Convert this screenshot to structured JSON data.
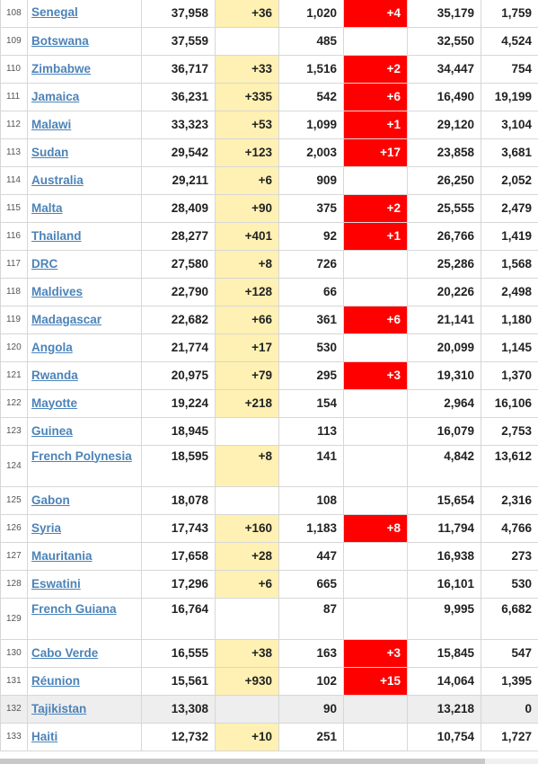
{
  "rows": [
    {
      "rank": "108",
      "country": "Senegal",
      "total_cases": "37,958",
      "new_cases": "+36",
      "total_deaths": "1,020",
      "new_deaths": "+4",
      "total_recovered": "35,179",
      "active_cases": "1,759"
    },
    {
      "rank": "109",
      "country": "Botswana",
      "total_cases": "37,559",
      "new_cases": "",
      "total_deaths": "485",
      "new_deaths": "",
      "total_recovered": "32,550",
      "active_cases": "4,524"
    },
    {
      "rank": "110",
      "country": "Zimbabwe",
      "total_cases": "36,717",
      "new_cases": "+33",
      "total_deaths": "1,516",
      "new_deaths": "+2",
      "total_recovered": "34,447",
      "active_cases": "754"
    },
    {
      "rank": "111",
      "country": "Jamaica",
      "total_cases": "36,231",
      "new_cases": "+335",
      "total_deaths": "542",
      "new_deaths": "+6",
      "total_recovered": "16,490",
      "active_cases": "19,199"
    },
    {
      "rank": "112",
      "country": "Malawi",
      "total_cases": "33,323",
      "new_cases": "+53",
      "total_deaths": "1,099",
      "new_deaths": "+1",
      "total_recovered": "29,120",
      "active_cases": "3,104"
    },
    {
      "rank": "113",
      "country": "Sudan",
      "total_cases": "29,542",
      "new_cases": "+123",
      "total_deaths": "2,003",
      "new_deaths": "+17",
      "total_recovered": "23,858",
      "active_cases": "3,681"
    },
    {
      "rank": "114",
      "country": "Australia",
      "total_cases": "29,211",
      "new_cases": "+6",
      "total_deaths": "909",
      "new_deaths": "",
      "total_recovered": "26,250",
      "active_cases": "2,052"
    },
    {
      "rank": "115",
      "country": "Malta",
      "total_cases": "28,409",
      "new_cases": "+90",
      "total_deaths": "375",
      "new_deaths": "+2",
      "total_recovered": "25,555",
      "active_cases": "2,479"
    },
    {
      "rank": "116",
      "country": "Thailand",
      "total_cases": "28,277",
      "new_cases": "+401",
      "total_deaths": "92",
      "new_deaths": "+1",
      "total_recovered": "26,766",
      "active_cases": "1,419"
    },
    {
      "rank": "117",
      "country": "DRC",
      "total_cases": "27,580",
      "new_cases": "+8",
      "total_deaths": "726",
      "new_deaths": "",
      "total_recovered": "25,286",
      "active_cases": "1,568"
    },
    {
      "rank": "118",
      "country": "Maldives",
      "total_cases": "22,790",
      "new_cases": "+128",
      "total_deaths": "66",
      "new_deaths": "",
      "total_recovered": "20,226",
      "active_cases": "2,498"
    },
    {
      "rank": "119",
      "country": "Madagascar",
      "total_cases": "22,682",
      "new_cases": "+66",
      "total_deaths": "361",
      "new_deaths": "+6",
      "total_recovered": "21,141",
      "active_cases": "1,180"
    },
    {
      "rank": "120",
      "country": "Angola",
      "total_cases": "21,774",
      "new_cases": "+17",
      "total_deaths": "530",
      "new_deaths": "",
      "total_recovered": "20,099",
      "active_cases": "1,145"
    },
    {
      "rank": "121",
      "country": "Rwanda",
      "total_cases": "20,975",
      "new_cases": "+79",
      "total_deaths": "295",
      "new_deaths": "+3",
      "total_recovered": "19,310",
      "active_cases": "1,370"
    },
    {
      "rank": "122",
      "country": "Mayotte",
      "total_cases": "19,224",
      "new_cases": "+218",
      "total_deaths": "154",
      "new_deaths": "",
      "total_recovered": "2,964",
      "active_cases": "16,106"
    },
    {
      "rank": "123",
      "country": "Guinea",
      "total_cases": "18,945",
      "new_cases": "",
      "total_deaths": "113",
      "new_deaths": "",
      "total_recovered": "16,079",
      "active_cases": "2,753"
    },
    {
      "rank": "124",
      "country": "French Polynesia",
      "total_cases": "18,595",
      "new_cases": "+8",
      "total_deaths": "141",
      "new_deaths": "",
      "total_recovered": "4,842",
      "active_cases": "13,612",
      "tall": true
    },
    {
      "rank": "125",
      "country": "Gabon",
      "total_cases": "18,078",
      "new_cases": "",
      "total_deaths": "108",
      "new_deaths": "",
      "total_recovered": "15,654",
      "active_cases": "2,316"
    },
    {
      "rank": "126",
      "country": "Syria",
      "total_cases": "17,743",
      "new_cases": "+160",
      "total_deaths": "1,183",
      "new_deaths": "+8",
      "total_recovered": "11,794",
      "active_cases": "4,766"
    },
    {
      "rank": "127",
      "country": "Mauritania",
      "total_cases": "17,658",
      "new_cases": "+28",
      "total_deaths": "447",
      "new_deaths": "",
      "total_recovered": "16,938",
      "active_cases": "273"
    },
    {
      "rank": "128",
      "country": "Eswatini",
      "total_cases": "17,296",
      "new_cases": "+6",
      "total_deaths": "665",
      "new_deaths": "",
      "total_recovered": "16,101",
      "active_cases": "530"
    },
    {
      "rank": "129",
      "country": "French Guiana",
      "total_cases": "16,764",
      "new_cases": "",
      "total_deaths": "87",
      "new_deaths": "",
      "total_recovered": "9,995",
      "active_cases": "6,682",
      "tall": true
    },
    {
      "rank": "130",
      "country": "Cabo Verde",
      "total_cases": "16,555",
      "new_cases": "+38",
      "total_deaths": "163",
      "new_deaths": "+3",
      "total_recovered": "15,845",
      "active_cases": "547"
    },
    {
      "rank": "131",
      "country": "Réunion",
      "total_cases": "15,561",
      "new_cases": "+930",
      "total_deaths": "102",
      "new_deaths": "+15",
      "total_recovered": "14,064",
      "active_cases": "1,395"
    },
    {
      "rank": "132",
      "country": "Tajikistan",
      "total_cases": "13,308",
      "new_cases": "",
      "total_deaths": "90",
      "new_deaths": "",
      "total_recovered": "13,218",
      "active_cases": "0",
      "gray": true
    },
    {
      "rank": "133",
      "country": "Haiti",
      "total_cases": "12,732",
      "new_cases": "+10",
      "total_deaths": "251",
      "new_deaths": "",
      "total_recovered": "10,754",
      "active_cases": "1,727"
    }
  ],
  "colors": {
    "link": "#4c83b8",
    "new_cases_bg": "#fff1b3",
    "new_deaths_bg": "#ff0000",
    "highlight_row_bg": "#eeeeee"
  }
}
